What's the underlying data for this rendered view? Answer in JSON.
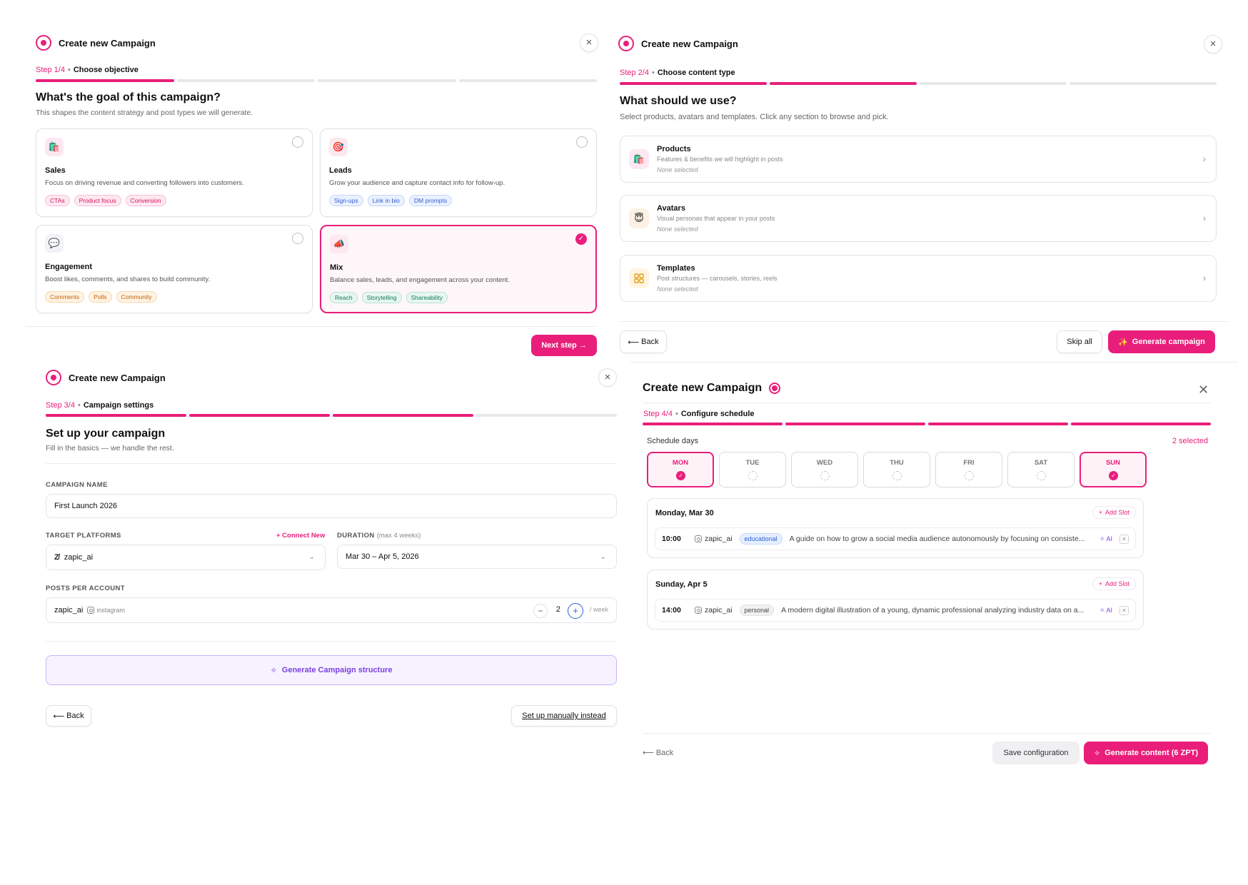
{
  "panel1": {
    "title": "Create new Campaign",
    "step_no": "Step 1/4",
    "step_name": "Choose objective",
    "heading": "What's the goal of this campaign?",
    "subheading": "This shapes the content strategy and post types we will generate.",
    "options": [
      {
        "title": "Sales",
        "desc": "Focus on driving revenue and converting followers into customers.",
        "chips": [
          "CTAs",
          "Product focus",
          "Conversion"
        ],
        "icon": "shopping-bag-icon",
        "selected": false
      },
      {
        "title": "Leads",
        "desc": "Grow your audience and capture contact info for follow-up.",
        "chips": [
          "Sign-ups",
          "Link in bio",
          "DM prompts"
        ],
        "icon": "target-icon",
        "selected": false
      },
      {
        "title": "Engagement",
        "desc": "Boost likes, comments, and shares to build community.",
        "chips": [
          "Comments",
          "Polls",
          "Community"
        ],
        "icon": "speech-bubble-icon",
        "selected": false
      },
      {
        "title": "Mix",
        "desc": "Balance sales, leads, and engagement across your content.",
        "chips": [
          "Reach",
          "Storytelling",
          "Shareability"
        ],
        "icon": "megaphone-icon",
        "selected": true
      }
    ],
    "next_label": "Next step →"
  },
  "panel2": {
    "title": "Create new Campaign",
    "step_no": "Step 2/4",
    "step_name": "Choose content type",
    "heading": "What should we use?",
    "subheading": "Select products, avatars and templates. Click any section to browse and pick.",
    "rows": [
      {
        "title": "Products",
        "desc": "Features & benefits we will highlight in posts",
        "status": "None selected",
        "icon": "shopping-bag-icon"
      },
      {
        "title": "Avatars",
        "desc": "Visual personas that appear in your posts",
        "status": "None selected",
        "icon": "persona-icon"
      },
      {
        "title": "Templates",
        "desc": "Post structures — carousels, stories, reels",
        "status": "None selected",
        "icon": "grid-icon"
      }
    ],
    "back_label": "Back",
    "skip_label": "Skip all",
    "generate_label": "Generate campaign"
  },
  "panel3": {
    "title": "Create new Campaign",
    "step_no": "Step 3/4",
    "step_name": "Campaign settings",
    "heading": "Set up your campaign",
    "subheading": "Fill in the basics — we handle the rest.",
    "campaign_name_label": "CAMPAIGN NAME",
    "campaign_name_value": "First Launch 2026",
    "platforms_label": "TARGET PLATFORMS",
    "connect_new": "+ Connect New",
    "platform_value": "zapic_ai",
    "duration_label": "DURATION",
    "duration_hint": "(max 4 weeks)",
    "duration_value": "Mar 30 – Apr 5, 2026",
    "posts_label": "POSTS PER ACCOUNT",
    "account_name": "zapic_ai",
    "account_platform": "instagram",
    "posts_count": "2",
    "posts_unit": "/ week",
    "generate_structure_label": "Generate Campaign structure",
    "back_label": "Back",
    "manual_label": "Set up manually instead"
  },
  "panel4": {
    "title": "Create new Campaign",
    "step_no": "Step 4/4",
    "step_name": "Configure schedule",
    "schedule_label": "Schedule days",
    "selected_count": "2 selected",
    "days": [
      {
        "label": "MON",
        "on": true
      },
      {
        "label": "TUE",
        "on": false
      },
      {
        "label": "WED",
        "on": false
      },
      {
        "label": "THU",
        "on": false
      },
      {
        "label": "FRI",
        "on": false
      },
      {
        "label": "SAT",
        "on": false
      },
      {
        "label": "SUN",
        "on": true
      }
    ],
    "slots": [
      {
        "date": "Monday, Mar 30",
        "time": "10:00",
        "account": "zapic_ai",
        "tag": "educational",
        "tag_color": "blue",
        "text": "A guide on how to grow a social media audience autonomously by focusing on consiste..."
      },
      {
        "date": "Sunday, Apr 5",
        "time": "14:00",
        "account": "zapic_ai",
        "tag": "personal",
        "tag_color": "grey",
        "text": "A modern digital illustration of a young, dynamic professional analyzing industry data on a..."
      }
    ],
    "add_slot_label": "Add Slot",
    "ai_label": "AI",
    "back_label": "Back",
    "save_label": "Save configuration",
    "generate_label": "Generate content (6 ZPT)"
  },
  "colors": {
    "accent": "#e91e7a",
    "purple": "#7b3fe4"
  }
}
